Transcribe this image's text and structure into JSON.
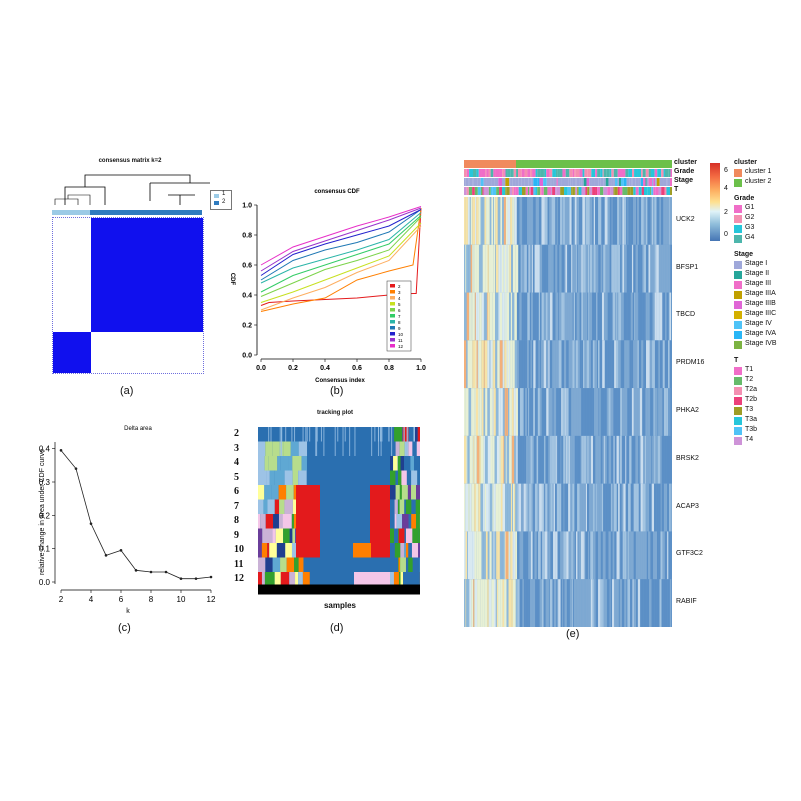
{
  "panel_a": {
    "title": "consensus matrix k=2",
    "legend": [
      "1",
      "2"
    ],
    "caption": "(a)"
  },
  "panel_b": {
    "title": "consensus CDF",
    "xlabel": "Consensus index",
    "ylabel": "CDF",
    "xticks": [
      "0.0",
      "0.2",
      "0.4",
      "0.6",
      "0.8",
      "1.0"
    ],
    "yticks": [
      "0.0",
      "0.2",
      "0.4",
      "0.6",
      "0.8",
      "1.0"
    ],
    "legend": [
      "2",
      "3",
      "4",
      "5",
      "6",
      "7",
      "8",
      "9",
      "10",
      "11",
      "12"
    ],
    "caption": "(b)"
  },
  "panel_c": {
    "title": "Delta area",
    "xlabel": "k",
    "ylabel": "relative change in area under CDF curve",
    "caption": "(c)"
  },
  "panel_d": {
    "title": "tracking plot",
    "xlabel": "samples",
    "rows": [
      "2",
      "3",
      "4",
      "5",
      "6",
      "7",
      "8",
      "9",
      "10",
      "11",
      "12"
    ],
    "caption": "(d)"
  },
  "panel_e": {
    "annotation_rows": [
      "cluster",
      "Grade",
      "Stage",
      "T"
    ],
    "genes": [
      "UCK2",
      "BFSP1",
      "TBCD",
      "PRDM16",
      "PHKA2",
      "BRSK2",
      "ACAP3",
      "GTF3C2",
      "RABIF"
    ],
    "colorbar_ticks": [
      "6",
      "4",
      "2",
      "0"
    ],
    "legends": [
      {
        "title": "cluster",
        "items": [
          {
            "label": "cluster 1",
            "color": "#F08A5D"
          },
          {
            "label": "cluster 2",
            "color": "#6CC04A"
          }
        ]
      },
      {
        "title": "Grade",
        "items": [
          {
            "label": "G1",
            "color": "#F06EC8"
          },
          {
            "label": "G2",
            "color": "#F48FB1"
          },
          {
            "label": "G3",
            "color": "#26C6DA"
          },
          {
            "label": "G4",
            "color": "#4DB6AC"
          }
        ]
      },
      {
        "title": "Stage",
        "items": [
          {
            "label": "Stage I",
            "color": "#9FA8DA"
          },
          {
            "label": "Stage II",
            "color": "#26A69A"
          },
          {
            "label": "Stage III",
            "color": "#F06EC8"
          },
          {
            "label": "Stage IIIA",
            "color": "#C0A000"
          },
          {
            "label": "Stage IIIB",
            "color": "#E066D6"
          },
          {
            "label": "Stage IIIC",
            "color": "#D4B000"
          },
          {
            "label": "Stage IV",
            "color": "#4FC3F7"
          },
          {
            "label": "Stage IVA",
            "color": "#29B6F6"
          },
          {
            "label": "Stage IVB",
            "color": "#7CB342"
          }
        ]
      },
      {
        "title": "T",
        "items": [
          {
            "label": "T1",
            "color": "#F06EC8"
          },
          {
            "label": "T2",
            "color": "#66BB6A"
          },
          {
            "label": "T2a",
            "color": "#F48FB1"
          },
          {
            "label": "T2b",
            "color": "#EC407A"
          },
          {
            "label": "T3",
            "color": "#9E9D24"
          },
          {
            "label": "T3a",
            "color": "#26C6DA"
          },
          {
            "label": "T3b",
            "color": "#4FC3F7"
          },
          {
            "label": "T4",
            "color": "#CE93D8"
          }
        ]
      }
    ],
    "caption": "(e)"
  },
  "chart_data": [
    {
      "type": "line",
      "title": "Delta area",
      "xlabel": "k",
      "ylabel": "relative change in area under CDF curve",
      "x": [
        2,
        3,
        4,
        5,
        6,
        7,
        8,
        9,
        10,
        11,
        12
      ],
      "values": [
        0.395,
        0.34,
        0.175,
        0.08,
        0.095,
        0.035,
        0.03,
        0.03,
        0.01,
        0.01,
        0.015
      ],
      "xticks": [
        2,
        4,
        6,
        8,
        10,
        12
      ],
      "yticks": [
        0.0,
        0.1,
        0.2,
        0.3,
        0.4
      ],
      "xlim": [
        2,
        12
      ],
      "ylim": [
        0,
        0.42
      ]
    },
    {
      "type": "line",
      "title": "consensus CDF",
      "xlabel": "Consensus index",
      "ylabel": "CDF",
      "xlim": [
        0,
        1
      ],
      "ylim": [
        0,
        1
      ],
      "legend_position": "bottom-right",
      "series": [
        {
          "name": "2",
          "color": "#E41A1C",
          "x": [
            0,
            0.05,
            0.2,
            0.4,
            0.6,
            0.8,
            0.95,
            0.97,
            1.0
          ],
          "values": [
            0.33,
            0.35,
            0.36,
            0.37,
            0.38,
            0.4,
            0.41,
            0.41,
            0.98
          ]
        },
        {
          "name": "3",
          "color": "#FF7F00",
          "x": [
            0,
            0.2,
            0.4,
            0.6,
            0.8,
            0.95,
            1.0
          ],
          "values": [
            0.29,
            0.34,
            0.38,
            0.5,
            0.56,
            0.6,
            0.98
          ]
        },
        {
          "name": "4",
          "color": "#FDAE61",
          "x": [
            0,
            0.2,
            0.4,
            0.6,
            0.8,
            1.0
          ],
          "values": [
            0.3,
            0.38,
            0.45,
            0.55,
            0.63,
            0.86
          ]
        },
        {
          "name": "5",
          "color": "#C7E020",
          "x": [
            0,
            0.2,
            0.4,
            0.6,
            0.8,
            1.0
          ],
          "values": [
            0.35,
            0.42,
            0.5,
            0.58,
            0.66,
            0.88
          ]
        },
        {
          "name": "6",
          "color": "#7CD34A",
          "x": [
            0,
            0.2,
            0.4,
            0.6,
            0.8,
            1.0
          ],
          "values": [
            0.39,
            0.48,
            0.57,
            0.63,
            0.7,
            0.92
          ]
        },
        {
          "name": "7",
          "color": "#33CC66",
          "x": [
            0,
            0.2,
            0.4,
            0.6,
            0.8,
            1.0
          ],
          "values": [
            0.42,
            0.53,
            0.6,
            0.67,
            0.74,
            0.93
          ]
        },
        {
          "name": "8",
          "color": "#2BB5A8",
          "x": [
            0,
            0.2,
            0.4,
            0.6,
            0.8,
            1.0
          ],
          "values": [
            0.48,
            0.58,
            0.64,
            0.7,
            0.77,
            0.95
          ]
        },
        {
          "name": "9",
          "color": "#1F78B4",
          "x": [
            0,
            0.2,
            0.4,
            0.6,
            0.8,
            1.0
          ],
          "values": [
            0.5,
            0.63,
            0.7,
            0.75,
            0.82,
            0.97
          ]
        },
        {
          "name": "10",
          "color": "#2222CC",
          "x": [
            0,
            0.2,
            0.4,
            0.6,
            0.8,
            1.0
          ],
          "values": [
            0.53,
            0.67,
            0.74,
            0.8,
            0.86,
            0.97
          ]
        },
        {
          "name": "11",
          "color": "#9933CC",
          "x": [
            0,
            0.2,
            0.4,
            0.6,
            0.8,
            1.0
          ],
          "values": [
            0.56,
            0.69,
            0.76,
            0.83,
            0.9,
            0.98
          ]
        },
        {
          "name": "12",
          "color": "#E72FC8",
          "x": [
            0,
            0.2,
            0.4,
            0.6,
            0.8,
            1.0
          ],
          "values": [
            0.6,
            0.72,
            0.79,
            0.86,
            0.92,
            0.99
          ]
        }
      ]
    }
  ]
}
